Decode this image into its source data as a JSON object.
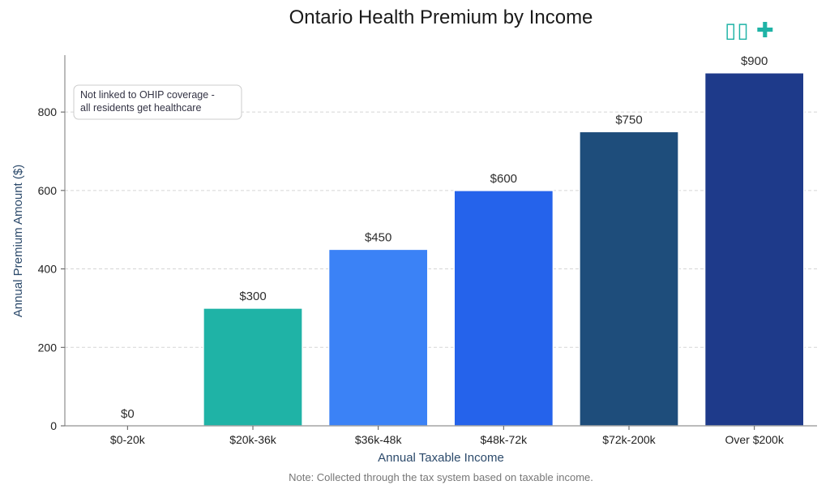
{
  "chart_data": {
    "type": "bar",
    "title": "Ontario Health Premium by Income",
    "xlabel": "Annual Taxable Income",
    "ylabel": "Annual Premium Amount ($)",
    "categories": [
      "$0-20k",
      "$20k-36k",
      "$36k-48k",
      "$48k-72k",
      "$72k-200k",
      "Over $200k"
    ],
    "values": [
      0,
      300,
      450,
      600,
      750,
      900
    ],
    "value_labels": [
      "$0",
      "$300",
      "$450",
      "$600",
      "$750",
      "$900"
    ],
    "colors": [
      "#1fb3a6",
      "#1fb3a6",
      "#3b82f6",
      "#2563eb",
      "#1e4d7b",
      "#1e3a8a"
    ],
    "ylim": [
      0,
      945
    ],
    "yticks": [
      0,
      200,
      400,
      600,
      800
    ],
    "grid": true,
    "annotation": [
      "Not linked to OHIP coverage -",
      "all residents get healthcare"
    ],
    "note": "Note: Collected through the tax system based on taxable income."
  },
  "logo": {
    "text": "✚",
    "icon": "health-cross-icon"
  }
}
